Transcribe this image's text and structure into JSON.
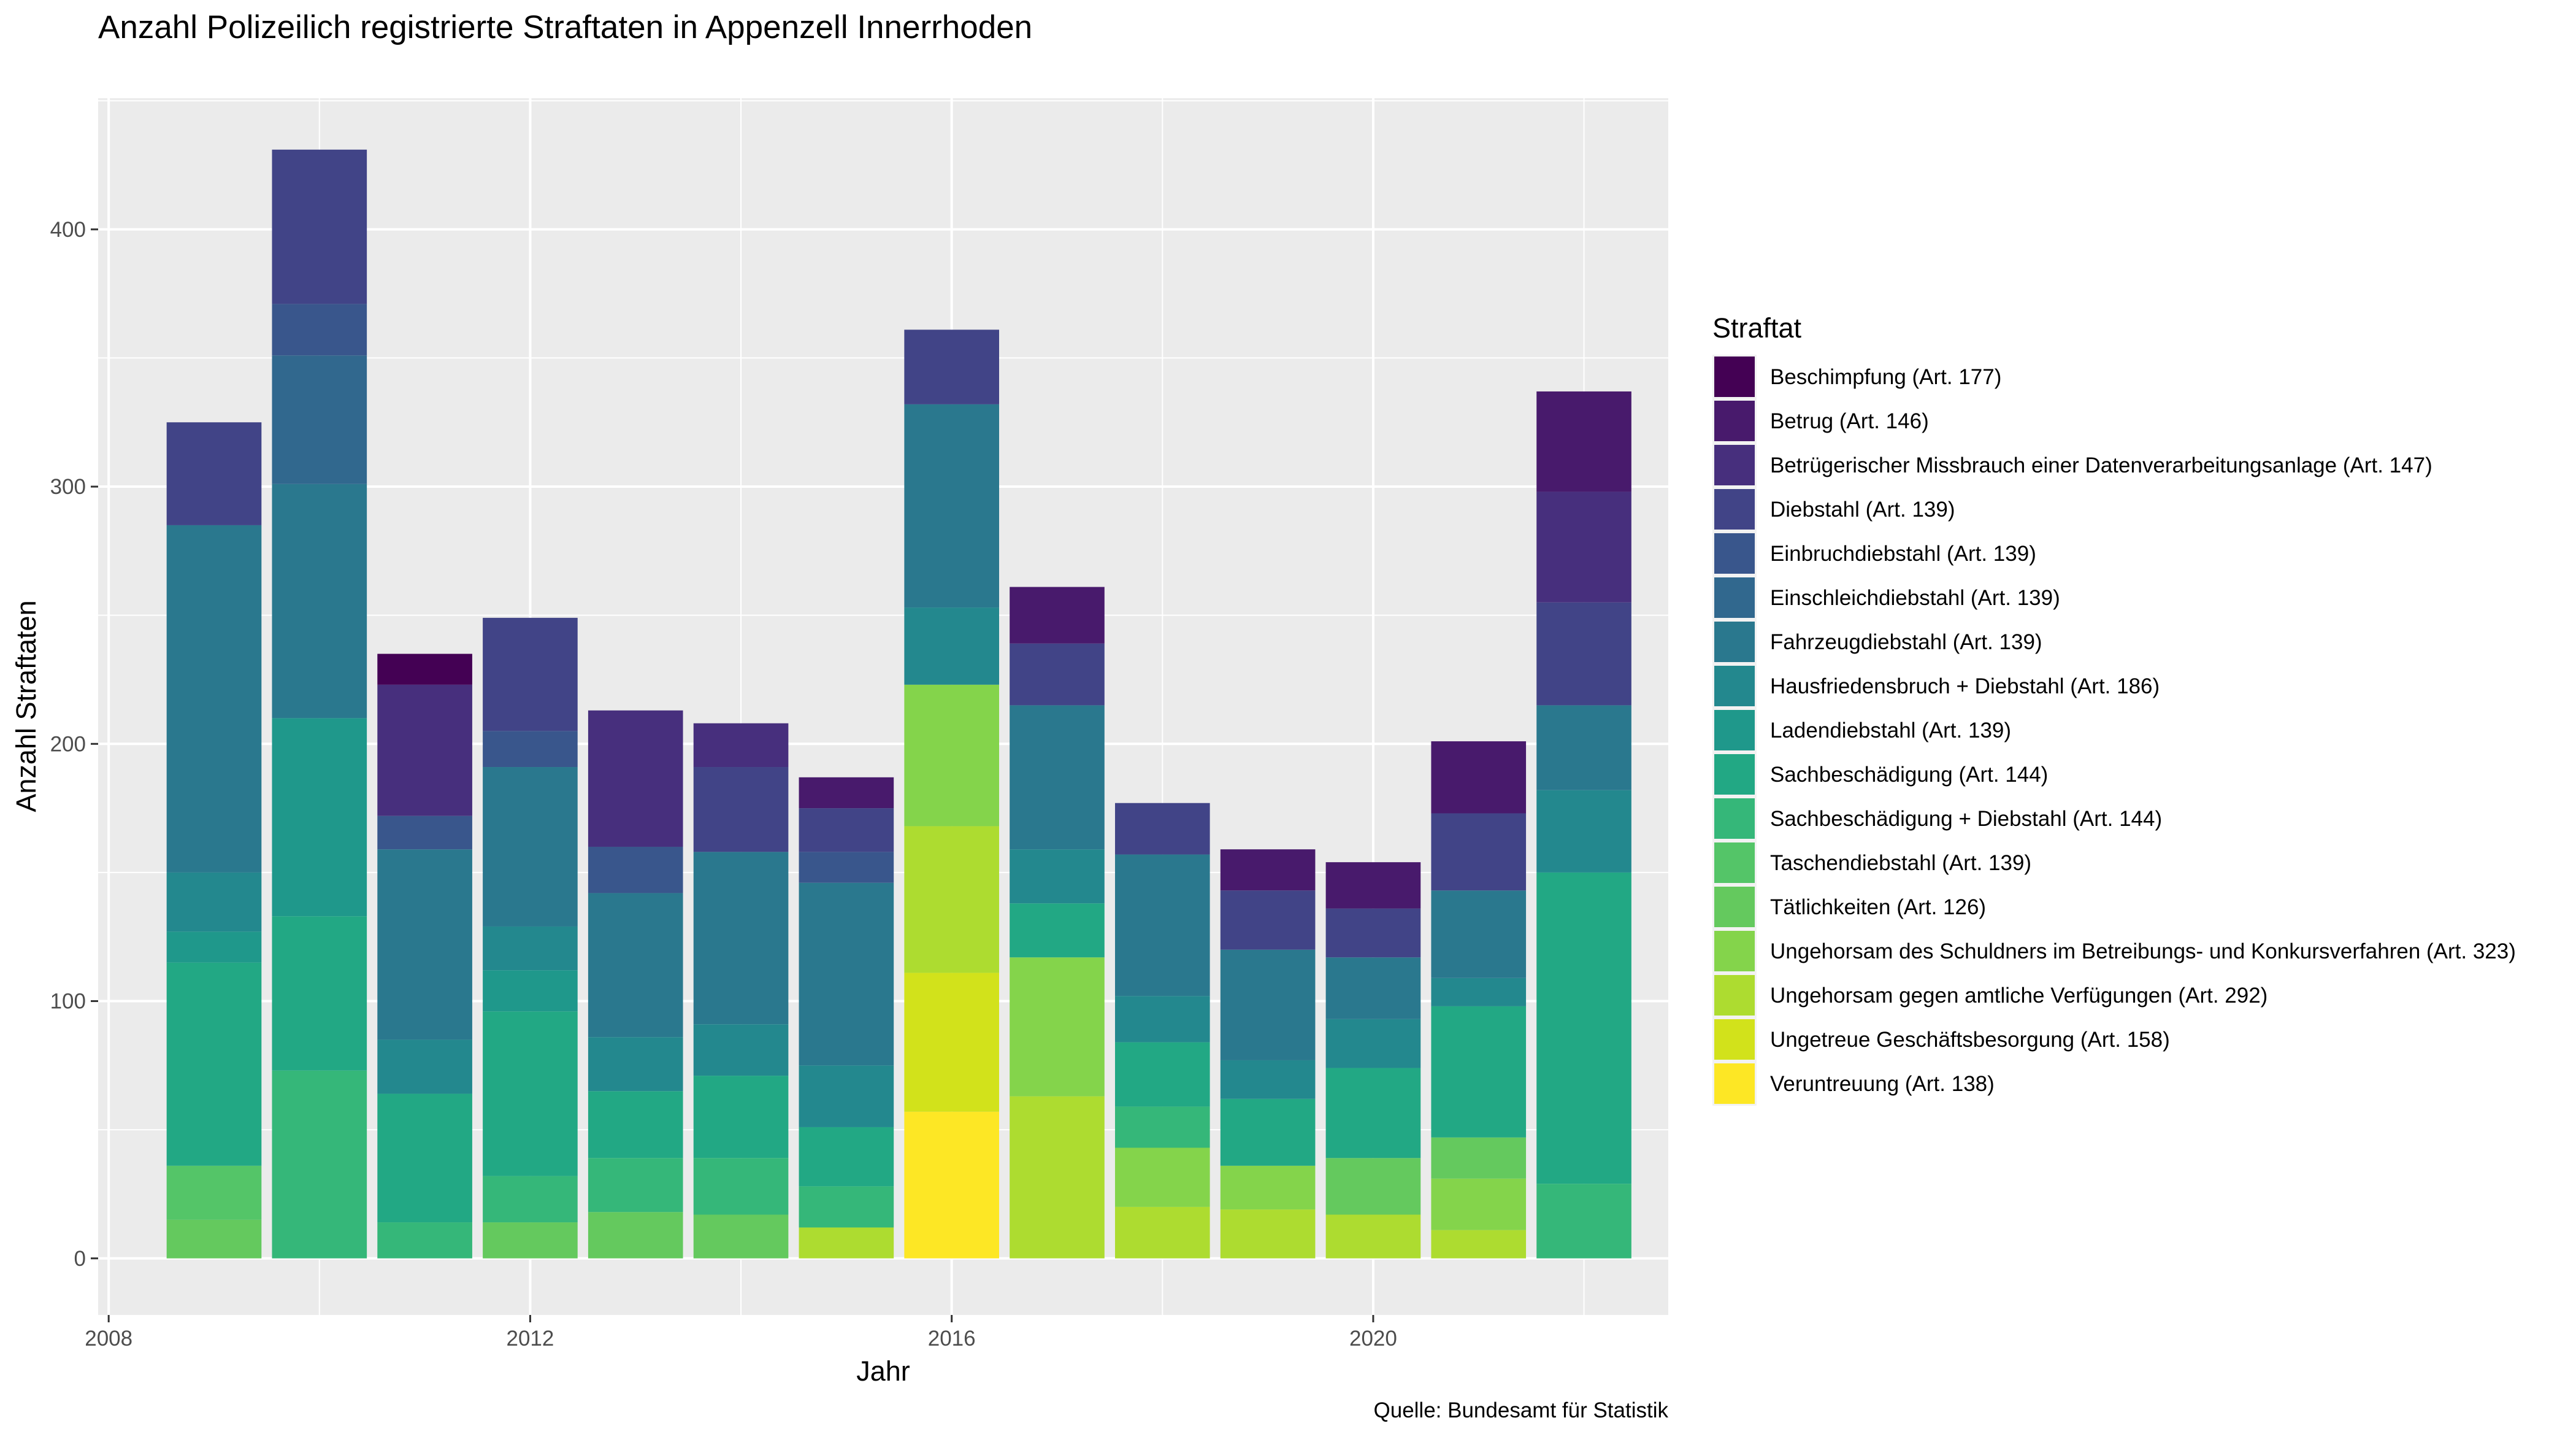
{
  "chart_data": {
    "type": "bar",
    "stacked": true,
    "title": "Anzahl Polizeilich registrierte Straftaten in Appenzell Innerrhoden",
    "xlabel": "Jahr",
    "ylabel": "Anzahl Straftaten",
    "caption": "Quelle: Bundesamt für Statistik",
    "legend_title": "Straftat",
    "legend_position": "right",
    "grid": true,
    "xlim": [
      2007.9,
      2022.8
    ],
    "ylim": [
      -22,
      451
    ],
    "x_ticks": [
      2008,
      2012,
      2016,
      2020
    ],
    "y_ticks": [
      0,
      100,
      200,
      300,
      400
    ],
    "years": [
      2009,
      2010,
      2011,
      2012,
      2013,
      2014,
      2015,
      2016,
      2017,
      2018,
      2019,
      2020,
      2021,
      2022
    ],
    "series": [
      {
        "name": "Beschimpfung (Art. 177)",
        "color": "#440154",
        "values": [
          0,
          0,
          12,
          0,
          0,
          0,
          0,
          0,
          0,
          0,
          0,
          0,
          0,
          0
        ]
      },
      {
        "name": "Betrug (Art. 146)",
        "color": "#481A6C",
        "values": [
          0,
          0,
          0,
          0,
          0,
          0,
          12,
          0,
          22,
          0,
          16,
          18,
          28,
          39
        ]
      },
      {
        "name": "Betrügerischer Missbrauch einer Datenverarbeitungsanlage (Art. 147)",
        "color": "#472F7D",
        "values": [
          0,
          0,
          51,
          0,
          53,
          17,
          0,
          0,
          0,
          0,
          0,
          0,
          0,
          43
        ]
      },
      {
        "name": "Diebstahl (Art. 139)",
        "color": "#414487",
        "values": [
          40,
          60,
          0,
          44,
          0,
          33,
          17,
          29,
          24,
          20,
          23,
          19,
          30,
          40
        ]
      },
      {
        "name": "Einbruchdiebstahl (Art. 139)",
        "color": "#39568C",
        "values": [
          0,
          20,
          13,
          14,
          18,
          0,
          12,
          0,
          0,
          0,
          0,
          0,
          0,
          0
        ]
      },
      {
        "name": "Einschleichdiebstahl (Art. 139)",
        "color": "#31688E",
        "values": [
          0,
          50,
          0,
          0,
          0,
          0,
          0,
          0,
          0,
          0,
          0,
          0,
          0,
          0
        ]
      },
      {
        "name": "Fahrzeugdiebstahl (Art. 139)",
        "color": "#2A788E",
        "values": [
          135,
          91,
          74,
          62,
          56,
          67,
          71,
          79,
          56,
          55,
          43,
          24,
          34,
          33
        ]
      },
      {
        "name": "Hausfriedensbruch + Diebstahl (Art. 186)",
        "color": "#23888E",
        "values": [
          23,
          0,
          21,
          17,
          21,
          20,
          24,
          30,
          21,
          18,
          15,
          19,
          11,
          32
        ]
      },
      {
        "name": "Ladendiebstahl (Art. 139)",
        "color": "#1F988B",
        "values": [
          12,
          77,
          0,
          16,
          0,
          0,
          0,
          0,
          0,
          0,
          0,
          0,
          0,
          0
        ]
      },
      {
        "name": "Sachbeschädigung (Art. 144)",
        "color": "#22A884",
        "values": [
          79,
          60,
          50,
          64,
          26,
          32,
          23,
          0,
          21,
          25,
          26,
          35,
          51,
          121
        ]
      },
      {
        "name": "Sachbeschädigung + Diebstahl (Art. 144)",
        "color": "#35B779",
        "values": [
          0,
          73,
          14,
          18,
          21,
          22,
          16,
          0,
          0,
          16,
          0,
          0,
          0,
          29
        ]
      },
      {
        "name": "Taschendiebstahl (Art. 139)",
        "color": "#54C568",
        "values": [
          21,
          0,
          0,
          0,
          0,
          0,
          0,
          0,
          0,
          0,
          0,
          0,
          0,
          0
        ]
      },
      {
        "name": "Tätlichkeiten (Art. 126)",
        "color": "#64C95E",
        "values": [
          15,
          0,
          0,
          14,
          18,
          17,
          0,
          0,
          0,
          0,
          0,
          22,
          16,
          0
        ]
      },
      {
        "name": "Ungehorsam des Schuldners im Betreibungs- und Konkursverfahren (Art. 323)",
        "color": "#84D44B",
        "values": [
          0,
          0,
          0,
          0,
          0,
          0,
          0,
          55,
          54,
          23,
          17,
          0,
          20,
          0
        ]
      },
      {
        "name": "Ungehorsam gegen amtliche Verfügungen (Art. 292)",
        "color": "#ADDC30",
        "values": [
          0,
          0,
          0,
          0,
          0,
          0,
          12,
          57,
          63,
          20,
          19,
          17,
          11,
          0
        ]
      },
      {
        "name": "Ungetreue Geschäftsbesorgung (Art. 158)",
        "color": "#D2E21B",
        "values": [
          0,
          0,
          0,
          0,
          0,
          0,
          0,
          54,
          0,
          0,
          0,
          0,
          0,
          0
        ]
      },
      {
        "name": "Veruntreuung (Art. 138)",
        "color": "#FDE725",
        "values": [
          0,
          0,
          0,
          0,
          0,
          0,
          0,
          57,
          0,
          0,
          0,
          0,
          0,
          0
        ]
      }
    ]
  }
}
